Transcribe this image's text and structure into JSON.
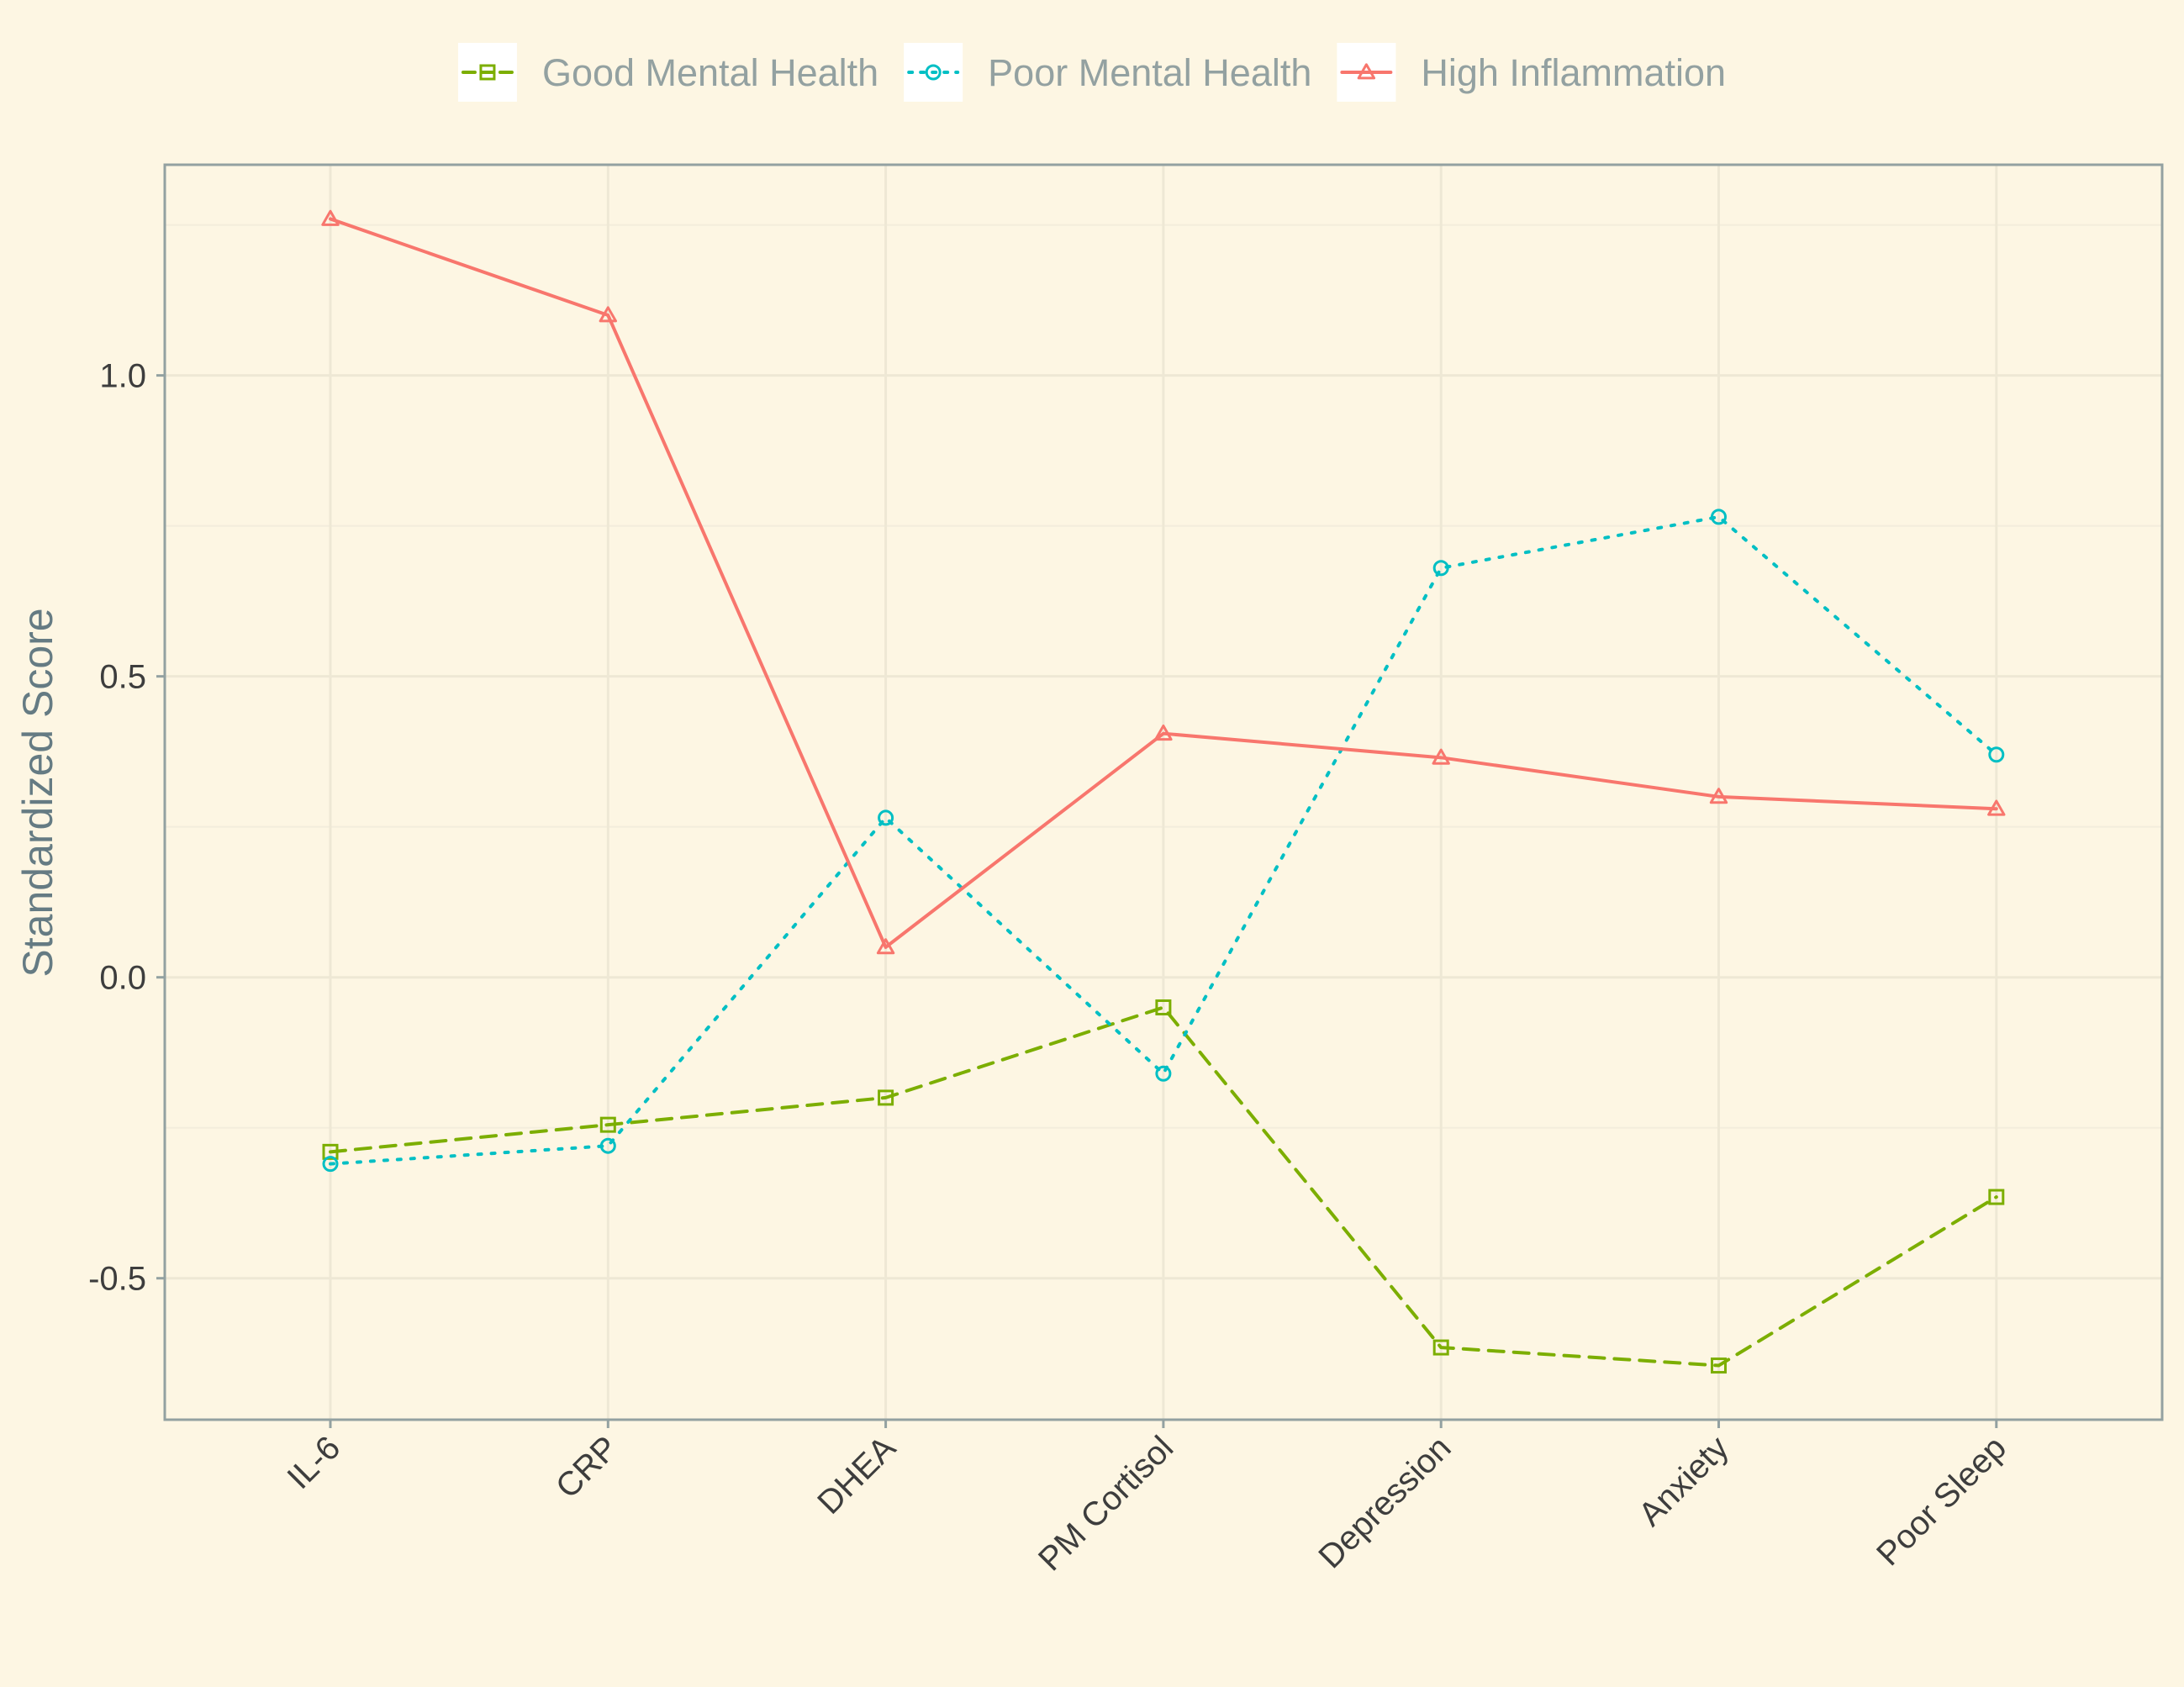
{
  "chart_data": {
    "type": "line",
    "title": "",
    "xlabel": "",
    "ylabel": "Standardized Score",
    "categories": [
      "IL-6",
      "CRP",
      "DHEA",
      "PM Cortisol",
      "Depression",
      "Anxiety",
      "Poor Sleep"
    ],
    "ylim": [
      -0.735,
      1.35
    ],
    "yticks": [
      -0.5,
      0.0,
      0.5,
      1.0
    ],
    "ytick_labels": [
      "-0.5",
      "0.0",
      "0.5",
      "1.0"
    ],
    "grid": true,
    "legend_position": "top",
    "series": [
      {
        "name": "Good Mental Health",
        "values": [
          -0.29,
          -0.245,
          -0.2,
          -0.05,
          -0.615,
          -0.645,
          -0.365
        ],
        "color": "#7CAE00",
        "line_style": "dashed",
        "marker": "square"
      },
      {
        "name": "Poor Mental Health",
        "values": [
          -0.31,
          -0.28,
          0.265,
          -0.16,
          0.68,
          0.765,
          0.37
        ],
        "color": "#00BFC4",
        "line_style": "dotted",
        "marker": "circle"
      },
      {
        "name": "High Inflammation",
        "values": [
          1.26,
          1.1,
          0.05,
          0.405,
          0.365,
          0.3,
          0.28
        ],
        "color": "#F8766D",
        "line_style": "solid",
        "marker": "triangle"
      }
    ]
  },
  "colors": {
    "background": "#FDF6E3",
    "panel_border": "#93A1A1",
    "grid_major": "#EEE8D5",
    "grid_minor": "#F3EDDC"
  }
}
